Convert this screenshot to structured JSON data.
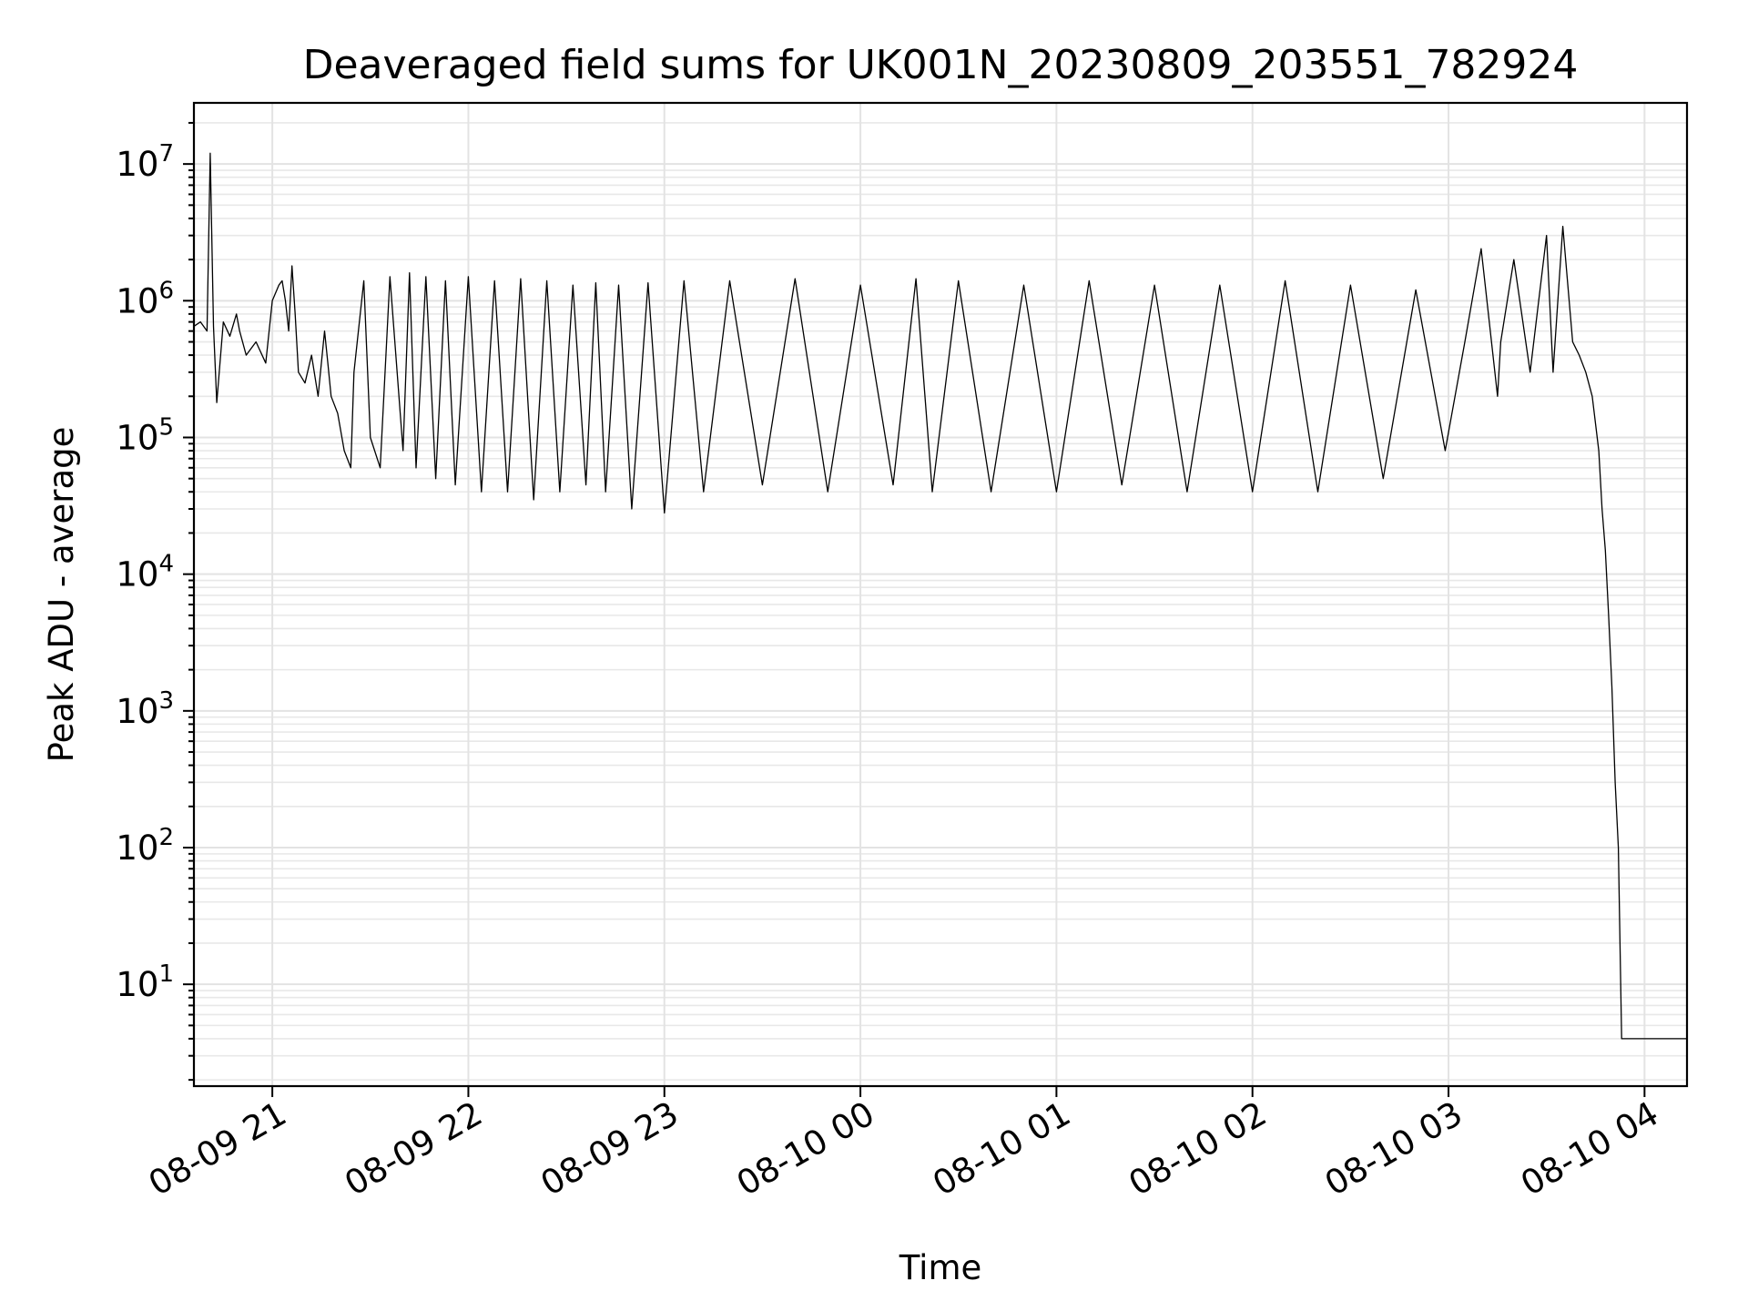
{
  "chart_data": {
    "type": "line",
    "title": "Deaveraged field sums for UK001N_20230809_203551_782924",
    "xlabel": "Time",
    "ylabel": "Peak ADU - average",
    "yscale": "log",
    "grid": true,
    "grid_minor": true,
    "legend": "none",
    "line_color": "#000000",
    "xlim": [
      "2023-08-09 20:36",
      "2023-08-10 04:13"
    ],
    "ylim": [
      1.8,
      28000000
    ],
    "x_ticks": [
      {
        "time": "2023-08-09 21:00",
        "label": "08-09 21"
      },
      {
        "time": "2023-08-09 22:00",
        "label": "08-09 22"
      },
      {
        "time": "2023-08-09 23:00",
        "label": "08-09 23"
      },
      {
        "time": "2023-08-10 00:00",
        "label": "08-10 00"
      },
      {
        "time": "2023-08-10 01:00",
        "label": "08-10 01"
      },
      {
        "time": "2023-08-10 02:00",
        "label": "08-10 02"
      },
      {
        "time": "2023-08-10 03:00",
        "label": "08-10 03"
      },
      {
        "time": "2023-08-10 04:00",
        "label": "08-10 04"
      }
    ],
    "y_ticks": [
      {
        "value": 10,
        "base": "10",
        "exp": "1"
      },
      {
        "value": 100,
        "base": "10",
        "exp": "2"
      },
      {
        "value": 1000,
        "base": "10",
        "exp": "3"
      },
      {
        "value": 10000,
        "base": "10",
        "exp": "4"
      },
      {
        "value": 100000,
        "base": "10",
        "exp": "5"
      },
      {
        "value": 1000000,
        "base": "10",
        "exp": "6"
      },
      {
        "value": 10000000,
        "base": "10",
        "exp": "7"
      }
    ],
    "series": [
      {
        "x": [
          "2023-08-09 20:36",
          "2023-08-09 20:38",
          "2023-08-09 20:40",
          "2023-08-09 20:41",
          "2023-08-09 20:42",
          "2023-08-09 20:43",
          "2023-08-09 20:45",
          "2023-08-09 20:47",
          "2023-08-09 20:49",
          "2023-08-09 20:50",
          "2023-08-09 20:52",
          "2023-08-09 20:55",
          "2023-08-09 20:58",
          "2023-08-09 21:00",
          "2023-08-09 21:02",
          "2023-08-09 21:03",
          "2023-08-09 21:04",
          "2023-08-09 21:05",
          "2023-08-09 21:06",
          "2023-08-09 21:07",
          "2023-08-09 21:08",
          "2023-08-09 21:10",
          "2023-08-09 21:12",
          "2023-08-09 21:14",
          "2023-08-09 21:16",
          "2023-08-09 21:17",
          "2023-08-09 21:18",
          "2023-08-09 21:20",
          "2023-08-09 21:22",
          "2023-08-09 21:24",
          "2023-08-09 21:25",
          "2023-08-09 21:28",
          "2023-08-09 21:30",
          "2023-08-09 21:33",
          "2023-08-09 21:36",
          "2023-08-09 21:40",
          "2023-08-09 21:42",
          "2023-08-09 21:44",
          "2023-08-09 21:47",
          "2023-08-09 21:50",
          "2023-08-09 21:53",
          "2023-08-09 21:56",
          "2023-08-09 22:00",
          "2023-08-09 22:04",
          "2023-08-09 22:08",
          "2023-08-09 22:12",
          "2023-08-09 22:16",
          "2023-08-09 22:20",
          "2023-08-09 22:24",
          "2023-08-09 22:28",
          "2023-08-09 22:32",
          "2023-08-09 22:36",
          "2023-08-09 22:39",
          "2023-08-09 22:42",
          "2023-08-09 22:46",
          "2023-08-09 22:50",
          "2023-08-09 22:55",
          "2023-08-09 23:00",
          "2023-08-09 23:06",
          "2023-08-09 23:12",
          "2023-08-09 23:20",
          "2023-08-09 23:30",
          "2023-08-09 23:40",
          "2023-08-09 23:50",
          "2023-08-10 00:00",
          "2023-08-10 00:10",
          "2023-08-10 00:17",
          "2023-08-10 00:22",
          "2023-08-10 00:30",
          "2023-08-10 00:40",
          "2023-08-10 00:50",
          "2023-08-10 01:00",
          "2023-08-10 01:10",
          "2023-08-10 01:20",
          "2023-08-10 01:30",
          "2023-08-10 01:40",
          "2023-08-10 01:50",
          "2023-08-10 02:00",
          "2023-08-10 02:10",
          "2023-08-10 02:20",
          "2023-08-10 02:30",
          "2023-08-10 02:40",
          "2023-08-10 02:50",
          "2023-08-10 02:59",
          "2023-08-10 03:05",
          "2023-08-10 03:10",
          "2023-08-10 03:15",
          "2023-08-10 03:16",
          "2023-08-10 03:20",
          "2023-08-10 03:25",
          "2023-08-10 03:30",
          "2023-08-10 03:32",
          "2023-08-10 03:35",
          "2023-08-10 03:38",
          "2023-08-10 03:40",
          "2023-08-10 03:42",
          "2023-08-10 03:44",
          "2023-08-10 03:46",
          "2023-08-10 03:47",
          "2023-08-10 03:48",
          "2023-08-10 03:49",
          "2023-08-10 03:50",
          "2023-08-10 03:51",
          "2023-08-10 03:52",
          "2023-08-10 03:53",
          "2023-08-10 03:54",
          "2023-08-10 03:55",
          "2023-08-10 04:00",
          "2023-08-10 04:05",
          "2023-08-10 04:13"
        ],
        "y": [
          650000,
          700000,
          600000,
          12000000,
          650000,
          180000,
          700000,
          550000,
          800000,
          600000,
          400000,
          500000,
          350000,
          1000000,
          1300000,
          1400000,
          1000000,
          600000,
          1800000,
          800000,
          300000,
          250000,
          400000,
          200000,
          600000,
          350000,
          200000,
          150000,
          80000,
          60000,
          300000,
          1400000,
          100000,
          60000,
          1500000,
          80000,
          1600000,
          60000,
          1500000,
          50000,
          1400000,
          45000,
          1500000,
          40000,
          1400000,
          40000,
          1450000,
          35000,
          1400000,
          40000,
          1300000,
          45000,
          1350000,
          40000,
          1300000,
          30000,
          1350000,
          28000,
          1400000,
          40000,
          1400000,
          45000,
          1450000,
          40000,
          1300000,
          45000,
          1450000,
          40000,
          1400000,
          40000,
          1300000,
          40000,
          1400000,
          45000,
          1300000,
          40000,
          1300000,
          40000,
          1400000,
          40000,
          1300000,
          50000,
          1200000,
          80000,
          500000,
          2400000,
          200000,
          500000,
          2000000,
          300000,
          3000000,
          300000,
          3500000,
          500000,
          400000,
          300000,
          200000,
          80000,
          30000,
          15000,
          5000,
          1500,
          300,
          100,
          4,
          4,
          4,
          4,
          4,
          4
        ]
      }
    ]
  }
}
